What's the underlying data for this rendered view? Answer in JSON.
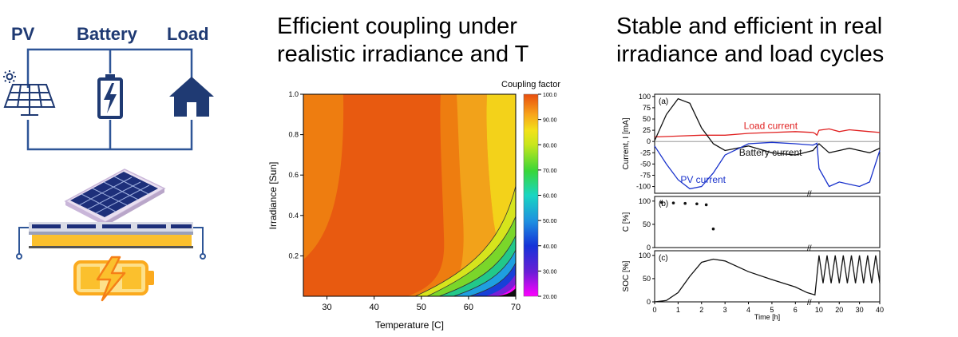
{
  "left_panel": {
    "labels": {
      "pv": "PV",
      "battery": "Battery",
      "load": "Load"
    },
    "icons": [
      "solar-panel-icon",
      "battery-charging-icon",
      "house-icon",
      "battery-lightning-icon"
    ],
    "colors": {
      "wire": "#2e5597",
      "icon_dark": "#1f3a73",
      "battery_fill": "#fbc02d"
    }
  },
  "middle_panel": {
    "heading_line1": "Efficient coupling under",
    "heading_line2": "realistic irradiance and T",
    "chart_data": {
      "type": "heatmap",
      "title": "",
      "xlabel": "Temperature [C]",
      "ylabel": "Irradiance [Sun]",
      "xlim": [
        25,
        70
      ],
      "ylim": [
        0,
        1.0
      ],
      "x_ticks": [
        30,
        40,
        50,
        60,
        70
      ],
      "y_ticks": [
        0.2,
        0.4,
        0.6,
        0.8,
        1.0
      ],
      "x_tick_labels": [
        "30",
        "40",
        "50",
        "60",
        "70"
      ],
      "y_tick_labels": [
        "0.2",
        "0.4",
        "0.6",
        "0.8",
        "1.0"
      ],
      "colorbar": {
        "title": "Coupling factor",
        "range": [
          20,
          100
        ],
        "ticks": [
          20,
          30,
          40,
          50,
          60,
          70,
          80,
          90,
          100
        ],
        "tick_labels": [
          "20.00",
          "30.00",
          "40.00",
          "50.00",
          "60.00",
          "70.00",
          "80.00",
          "90.00",
          "100.0"
        ]
      },
      "values_description_points": [
        {
          "temperature": 30,
          "irradiance": 0.6,
          "coupling": 93
        },
        {
          "temperature": 45,
          "irradiance": 0.6,
          "coupling": 97
        },
        {
          "temperature": 60,
          "irradiance": 0.6,
          "coupling": 91
        },
        {
          "temperature": 68,
          "irradiance": 0.6,
          "coupling": 83
        },
        {
          "temperature": 70,
          "irradiance": 0.2,
          "coupling": 55
        },
        {
          "temperature": 70,
          "irradiance": 0.05,
          "coupling": 20
        }
      ]
    }
  },
  "right_panel": {
    "heading_line1": "Stable and efficient in real",
    "heading_line2": "irradiance and load cycles",
    "chart_data": [
      {
        "type": "line",
        "panel_label": "(a)",
        "ylabel": "Current, I [mA]",
        "ylim": [
          -115,
          105
        ],
        "y_ticks": [
          -100,
          -75,
          -50,
          -25,
          0,
          25,
          50,
          75,
          100
        ],
        "y_tick_labels": [
          "-100",
          "-75",
          "-50",
          "-25",
          "0",
          "25",
          "50",
          "75",
          "100"
        ],
        "series": [
          {
            "name": "Load current",
            "color": "#e02020",
            "x": [
              0,
              1,
              2,
              3,
              4,
              5,
              6,
              7,
              8,
              9,
              10,
              15,
              20,
              25,
              30,
              35,
              40
            ],
            "y": [
              10,
              12,
              14,
              14,
              18,
              20,
              22,
              20,
              18,
              14,
              25,
              28,
              22,
              26,
              24,
              22,
              20
            ]
          },
          {
            "name": "Battery current",
            "color": "#111111",
            "x": [
              0,
              0.5,
              1,
              1.5,
              2,
              2.5,
              3,
              4,
              5,
              6,
              7,
              8,
              9,
              10,
              15,
              20,
              25,
              30,
              35,
              40
            ],
            "y": [
              2,
              60,
              95,
              85,
              30,
              -5,
              -20,
              -10,
              -25,
              -30,
              -20,
              -15,
              -10,
              -5,
              -25,
              -20,
              -15,
              -20,
              -25,
              -15
            ]
          },
          {
            "name": "PV current",
            "color": "#1a33cc",
            "x": [
              0,
              0.5,
              1,
              1.5,
              2,
              2.5,
              3,
              4,
              5,
              6,
              7,
              8,
              9,
              10,
              15,
              20,
              25,
              30,
              35,
              40
            ],
            "y": [
              -10,
              -50,
              -85,
              -105,
              -100,
              -70,
              -30,
              -5,
              -2,
              -5,
              -8,
              -6,
              -4,
              -60,
              -100,
              -90,
              -95,
              -100,
              -90,
              -20
            ]
          }
        ]
      },
      {
        "type": "scatter",
        "panel_label": "(b)",
        "ylabel": "C [%]",
        "ylim": [
          0,
          110
        ],
        "y_ticks": [
          0,
          50,
          100
        ],
        "y_tick_labels": [
          "0",
          "50",
          "100"
        ],
        "series": [
          {
            "name": "",
            "x": [
              0.3,
              0.8,
              1.3,
              1.8,
              2.2,
              2.5
            ],
            "y": [
              97,
              96,
              95,
              94,
              92,
              40
            ]
          }
        ]
      },
      {
        "type": "line",
        "panel_label": "(c)",
        "ylabel": "SOC [%]",
        "xlabel": "Time [h]",
        "ylim": [
          0,
          110
        ],
        "y_ticks": [
          0,
          50,
          100
        ],
        "y_tick_labels": [
          "0",
          "50",
          "100"
        ],
        "x_ticks": [
          0,
          1,
          2,
          3,
          4,
          5,
          6,
          10,
          20,
          30,
          40
        ],
        "x_tick_labels": [
          "0",
          "1",
          "2",
          "3",
          "4",
          "5",
          "6",
          "10",
          "20",
          "30",
          "40"
        ],
        "series": [
          {
            "name": "",
            "x": [
              0,
              0.5,
              1,
              1.5,
              2,
              2.5,
              3,
              4,
              5,
              6,
              6.5,
              8,
              10,
              12,
              14,
              16,
              18,
              20,
              22,
              24,
              26,
              28,
              30,
              32,
              34,
              36,
              38,
              40
            ],
            "y": [
              0,
              3,
              20,
              55,
              85,
              92,
              88,
              65,
              48,
              32,
              20,
              15,
              100,
              40,
              100,
              40,
              100,
              40,
              100,
              40,
              100,
              40,
              100,
              40,
              100,
              40,
              100,
              40
            ]
          }
        ]
      }
    ]
  }
}
